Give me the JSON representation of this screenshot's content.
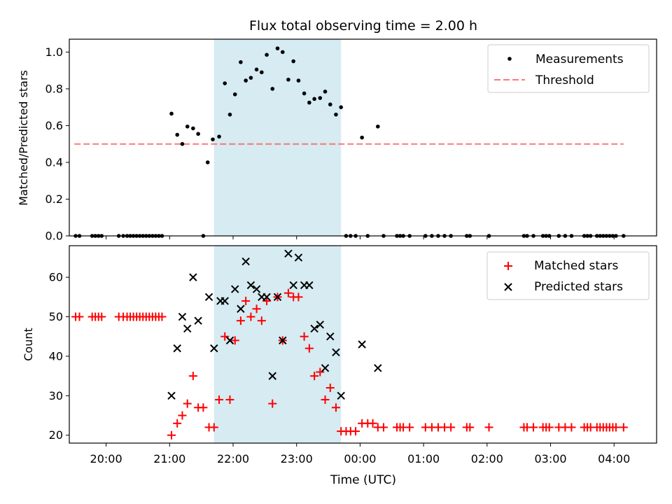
{
  "chart_data": {
    "title": "Flux total observing time = 2.00 h",
    "xlabel": "Time (UTC)",
    "x_unit": "hours UTC (values beyond 24 are after midnight)",
    "xlim": [
      19.42,
      28.67
    ],
    "xticks": [
      {
        "value": 20,
        "label": "20:00"
      },
      {
        "value": 21,
        "label": "21:00"
      },
      {
        "value": 22,
        "label": "22:00"
      },
      {
        "value": 23,
        "label": "23:00"
      },
      {
        "value": 24,
        "label": "00:00"
      },
      {
        "value": 25,
        "label": "01:00"
      },
      {
        "value": 26,
        "label": "02:00"
      },
      {
        "value": 27,
        "label": "03:00"
      },
      {
        "value": 28,
        "label": "04:00"
      }
    ],
    "highlight_span": {
      "x_start": 21.7,
      "x_end": 23.7,
      "color": "#add8e6"
    },
    "panels": [
      {
        "type": "scatter",
        "ylabel": "Matched/Predicted stars",
        "ylim": [
          0,
          1.07
        ],
        "yticks": [
          "0.0",
          "0.2",
          "0.4",
          "0.6",
          "0.8",
          "1.0"
        ],
        "threshold": {
          "name": "Threshold",
          "value": 0.5,
          "x_start": 19.5,
          "x_end": 28.15,
          "color": "#ff6060"
        },
        "legend_position": "top-right",
        "series": [
          {
            "name": "Measurements",
            "marker": "dot",
            "color": "#000000",
            "points": [
              [
                19.52,
                0
              ],
              [
                19.58,
                0
              ],
              [
                19.78,
                0
              ],
              [
                19.83,
                0
              ],
              [
                19.88,
                0
              ],
              [
                19.93,
                0
              ],
              [
                20.2,
                0
              ],
              [
                20.27,
                0
              ],
              [
                20.33,
                0
              ],
              [
                20.38,
                0
              ],
              [
                20.43,
                0
              ],
              [
                20.48,
                0
              ],
              [
                20.53,
                0
              ],
              [
                20.58,
                0
              ],
              [
                20.63,
                0
              ],
              [
                20.68,
                0
              ],
              [
                20.73,
                0
              ],
              [
                20.78,
                0
              ],
              [
                20.83,
                0
              ],
              [
                20.88,
                0
              ],
              [
                21.03,
                0.665
              ],
              [
                21.12,
                0.55
              ],
              [
                21.2,
                0.5
              ],
              [
                21.28,
                0.595
              ],
              [
                21.37,
                0.585
              ],
              [
                21.45,
                0.555
              ],
              [
                21.53,
                0
              ],
              [
                21.6,
                0.4
              ],
              [
                21.68,
                0.525
              ],
              [
                21.78,
                0.54
              ],
              [
                21.87,
                0.83
              ],
              [
                21.95,
                0.66
              ],
              [
                22.03,
                0.77
              ],
              [
                22.12,
                0.945
              ],
              [
                22.2,
                0.845
              ],
              [
                22.28,
                0.86
              ],
              [
                22.37,
                0.905
              ],
              [
                22.45,
                0.89
              ],
              [
                22.53,
                0.985
              ],
              [
                22.62,
                0.8
              ],
              [
                22.7,
                1.02
              ],
              [
                22.78,
                1.0
              ],
              [
                22.87,
                0.85
              ],
              [
                22.95,
                0.95
              ],
              [
                23.03,
                0.845
              ],
              [
                23.12,
                0.775
              ],
              [
                23.2,
                0.725
              ],
              [
                23.28,
                0.745
              ],
              [
                23.37,
                0.75
              ],
              [
                23.45,
                0.785
              ],
              [
                23.53,
                0.715
              ],
              [
                23.62,
                0.66
              ],
              [
                23.7,
                0.7
              ],
              [
                23.78,
                0
              ],
              [
                23.85,
                0
              ],
              [
                23.93,
                0
              ],
              [
                24.03,
                0.535
              ],
              [
                24.12,
                0
              ],
              [
                24.28,
                0.595
              ],
              [
                24.37,
                0
              ],
              [
                24.58,
                0
              ],
              [
                24.63,
                0
              ],
              [
                24.68,
                0
              ],
              [
                24.78,
                0
              ],
              [
                25.03,
                0
              ],
              [
                25.13,
                0
              ],
              [
                25.23,
                0
              ],
              [
                25.33,
                0
              ],
              [
                25.43,
                0
              ],
              [
                25.68,
                0
              ],
              [
                25.73,
                0
              ],
              [
                26.03,
                0
              ],
              [
                26.58,
                0
              ],
              [
                26.63,
                0
              ],
              [
                26.73,
                0
              ],
              [
                26.88,
                0
              ],
              [
                26.93,
                0
              ],
              [
                26.98,
                0
              ],
              [
                27.13,
                0
              ],
              [
                27.23,
                0
              ],
              [
                27.33,
                0
              ],
              [
                27.53,
                0
              ],
              [
                27.58,
                0
              ],
              [
                27.63,
                0
              ],
              [
                27.73,
                0
              ],
              [
                27.78,
                0
              ],
              [
                27.83,
                0
              ],
              [
                27.88,
                0
              ],
              [
                27.93,
                0
              ],
              [
                27.98,
                0
              ],
              [
                28.03,
                0
              ],
              [
                28.15,
                0
              ]
            ]
          }
        ]
      },
      {
        "type": "scatter",
        "ylabel": "Count",
        "ylim": [
          18,
          68
        ],
        "yticks": [
          "20",
          "30",
          "40",
          "50",
          "60"
        ],
        "legend_position": "top-right",
        "series": [
          {
            "name": "Matched stars",
            "marker": "plus",
            "color": "#ff0000",
            "points": [
              [
                19.52,
                50
              ],
              [
                19.58,
                50
              ],
              [
                19.78,
                50
              ],
              [
                19.83,
                50
              ],
              [
                19.88,
                50
              ],
              [
                19.93,
                50
              ],
              [
                20.2,
                50
              ],
              [
                20.27,
                50
              ],
              [
                20.33,
                50
              ],
              [
                20.38,
                50
              ],
              [
                20.43,
                50
              ],
              [
                20.48,
                50
              ],
              [
                20.53,
                50
              ],
              [
                20.58,
                50
              ],
              [
                20.63,
                50
              ],
              [
                20.68,
                50
              ],
              [
                20.73,
                50
              ],
              [
                20.78,
                50
              ],
              [
                20.83,
                50
              ],
              [
                20.88,
                50
              ],
              [
                21.03,
                20
              ],
              [
                21.12,
                23
              ],
              [
                21.2,
                25
              ],
              [
                21.28,
                28
              ],
              [
                21.37,
                35
              ],
              [
                21.45,
                27
              ],
              [
                21.53,
                27
              ],
              [
                21.62,
                22
              ],
              [
                21.7,
                22
              ],
              [
                21.78,
                29
              ],
              [
                21.87,
                45
              ],
              [
                21.95,
                29
              ],
              [
                22.03,
                44
              ],
              [
                22.12,
                49
              ],
              [
                22.2,
                54
              ],
              [
                22.28,
                50
              ],
              [
                22.37,
                52
              ],
              [
                22.45,
                49
              ],
              [
                22.53,
                54
              ],
              [
                22.62,
                28
              ],
              [
                22.7,
                55
              ],
              [
                22.78,
                44
              ],
              [
                22.87,
                56
              ],
              [
                22.95,
                55
              ],
              [
                23.03,
                55
              ],
              [
                23.12,
                45
              ],
              [
                23.2,
                42
              ],
              [
                23.28,
                35
              ],
              [
                23.37,
                36
              ],
              [
                23.45,
                29
              ],
              [
                23.53,
                32
              ],
              [
                23.62,
                27
              ],
              [
                23.7,
                21
              ],
              [
                23.78,
                21
              ],
              [
                23.85,
                21
              ],
              [
                23.93,
                21
              ],
              [
                24.03,
                23
              ],
              [
                24.12,
                23
              ],
              [
                24.2,
                23
              ],
              [
                24.28,
                22
              ],
              [
                24.37,
                22
              ],
              [
                24.58,
                22
              ],
              [
                24.63,
                22
              ],
              [
                24.68,
                22
              ],
              [
                24.78,
                22
              ],
              [
                25.03,
                22
              ],
              [
                25.13,
                22
              ],
              [
                25.23,
                22
              ],
              [
                25.33,
                22
              ],
              [
                25.43,
                22
              ],
              [
                25.68,
                22
              ],
              [
                25.73,
                22
              ],
              [
                26.03,
                22
              ],
              [
                26.58,
                22
              ],
              [
                26.63,
                22
              ],
              [
                26.73,
                22
              ],
              [
                26.88,
                22
              ],
              [
                26.93,
                22
              ],
              [
                26.98,
                22
              ],
              [
                27.13,
                22
              ],
              [
                27.23,
                22
              ],
              [
                27.33,
                22
              ],
              [
                27.53,
                22
              ],
              [
                27.58,
                22
              ],
              [
                27.63,
                22
              ],
              [
                27.73,
                22
              ],
              [
                27.78,
                22
              ],
              [
                27.83,
                22
              ],
              [
                27.88,
                22
              ],
              [
                27.93,
                22
              ],
              [
                27.98,
                22
              ],
              [
                28.03,
                22
              ],
              [
                28.15,
                22
              ]
            ]
          },
          {
            "name": "Predicted stars",
            "marker": "x",
            "color": "#000000",
            "points": [
              [
                21.03,
                30
              ],
              [
                21.12,
                42
              ],
              [
                21.2,
                50
              ],
              [
                21.28,
                47
              ],
              [
                21.37,
                60
              ],
              [
                21.45,
                49
              ],
              [
                21.62,
                55
              ],
              [
                21.7,
                42
              ],
              [
                21.8,
                54
              ],
              [
                21.87,
                54
              ],
              [
                21.95,
                44
              ],
              [
                22.03,
                57
              ],
              [
                22.12,
                52
              ],
              [
                22.2,
                64
              ],
              [
                22.28,
                58
              ],
              [
                22.37,
                57
              ],
              [
                22.45,
                55
              ],
              [
                22.53,
                55
              ],
              [
                22.62,
                35
              ],
              [
                22.7,
                55
              ],
              [
                22.78,
                44
              ],
              [
                22.87,
                66
              ],
              [
                22.95,
                58
              ],
              [
                23.03,
                65
              ],
              [
                23.12,
                58
              ],
              [
                23.2,
                58
              ],
              [
                23.28,
                47
              ],
              [
                23.37,
                48
              ],
              [
                23.45,
                37
              ],
              [
                23.53,
                45
              ],
              [
                23.62,
                41
              ],
              [
                23.7,
                30
              ],
              [
                24.03,
                43
              ],
              [
                24.28,
                37
              ]
            ]
          }
        ]
      }
    ]
  }
}
